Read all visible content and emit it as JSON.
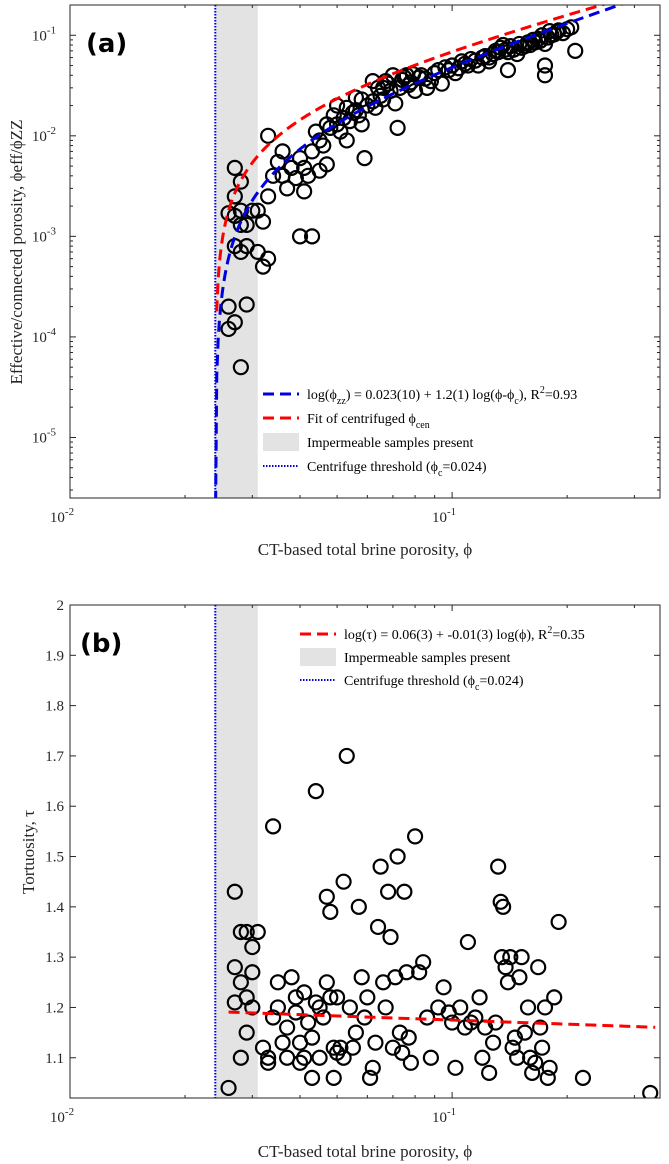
{
  "chart_data": [
    {
      "type": "scatter",
      "panel_label": "(a)",
      "xscale": "log",
      "yscale": "log",
      "xlim": [
        0.01,
        0.35
      ],
      "ylim": [
        2.5e-06,
        0.2
      ],
      "xlabel": "CT-based total brine porosity, ϕ",
      "ylabel": "Effective/connected porosity, ϕeff/ϕZZ",
      "xticks": [
        {
          "value": 0.01,
          "base": "10",
          "exp": "-2"
        },
        {
          "value": 0.1,
          "base": "10",
          "exp": "-1"
        }
      ],
      "yticks": [
        {
          "value": 1e-05,
          "base": "10",
          "exp": "-5"
        },
        {
          "value": 0.0001,
          "base": "10",
          "exp": "-4"
        },
        {
          "value": 0.001,
          "base": "10",
          "exp": "-3"
        },
        {
          "value": 0.01,
          "base": "10",
          "exp": "-2"
        },
        {
          "value": 0.1,
          "base": "10",
          "exp": "-1"
        }
      ],
      "impermeable_band": [
        0.024,
        0.031
      ],
      "threshold_x": 0.024,
      "threshold_y_bottom": 2.5e-06,
      "fit_zz": {
        "intercept": 0.023,
        "slope": 1.2,
        "phi_c": 0.024,
        "color": "#0000e0"
      },
      "fit_cen": {
        "a": 0.9,
        "b": 1.0,
        "phi_c": 0.024,
        "color": "#ff0000"
      },
      "legend": [
        {
          "kind": "blue-dash",
          "text_pre": "log(ϕ",
          "sub": "zz",
          "text_post": ") = 0.023(10) + 1.2(1) log(ϕ-ϕ",
          "sub2": "c",
          "text_post2": "), R",
          "sup": "2",
          "text_end": "=0.93"
        },
        {
          "kind": "red-dash",
          "text_pre": "Fit of centrifuged ϕ",
          "sub": "cen"
        },
        {
          "kind": "gray-box",
          "text_pre": "Impermeable samples present"
        },
        {
          "kind": "blue-dot",
          "text_pre": "Centrifuge threshold (ϕ",
          "sub": "c",
          "text_post": "=0.024)"
        }
      ],
      "points": [
        [
          0.027,
          0.0048
        ],
        [
          0.028,
          0.0035
        ],
        [
          0.027,
          0.0025
        ],
        [
          0.028,
          0.0018
        ],
        [
          0.027,
          0.0016
        ],
        [
          0.028,
          0.0013
        ],
        [
          0.027,
          0.0008
        ],
        [
          0.028,
          0.0007
        ],
        [
          0.029,
          0.0008
        ],
        [
          0.029,
          0.0013
        ],
        [
          0.03,
          0.0018
        ],
        [
          0.026,
          0.0017
        ],
        [
          0.026,
          0.00012
        ],
        [
          0.026,
          0.0002
        ],
        [
          0.027,
          0.00014
        ],
        [
          0.028,
          5e-05
        ],
        [
          0.029,
          0.00021
        ],
        [
          0.031,
          0.0007
        ],
        [
          0.032,
          0.0005
        ],
        [
          0.033,
          0.0006
        ],
        [
          0.031,
          0.0018
        ],
        [
          0.032,
          0.0014
        ],
        [
          0.033,
          0.0025
        ],
        [
          0.034,
          0.004
        ],
        [
          0.033,
          0.01
        ],
        [
          0.035,
          0.0055
        ],
        [
          0.036,
          0.004
        ],
        [
          0.036,
          0.007
        ],
        [
          0.038,
          0.0048
        ],
        [
          0.037,
          0.003
        ],
        [
          0.039,
          0.0038
        ],
        [
          0.04,
          0.006
        ],
        [
          0.041,
          0.0028
        ],
        [
          0.04,
          0.001
        ],
        [
          0.043,
          0.001
        ],
        [
          0.042,
          0.004
        ],
        [
          0.043,
          0.007
        ],
        [
          0.044,
          0.011
        ],
        [
          0.045,
          0.009
        ],
        [
          0.046,
          0.008
        ],
        [
          0.045,
          0.0045
        ],
        [
          0.047,
          0.0052
        ],
        [
          0.048,
          0.012
        ],
        [
          0.049,
          0.016
        ],
        [
          0.05,
          0.02
        ],
        [
          0.05,
          0.013
        ],
        [
          0.051,
          0.011
        ],
        [
          0.052,
          0.015
        ],
        [
          0.053,
          0.009
        ],
        [
          0.054,
          0.014
        ],
        [
          0.053,
          0.019
        ],
        [
          0.055,
          0.017
        ],
        [
          0.056,
          0.018
        ],
        [
          0.057,
          0.016
        ],
        [
          0.058,
          0.023
        ],
        [
          0.058,
          0.013
        ],
        [
          0.06,
          0.02
        ],
        [
          0.059,
          0.006
        ],
        [
          0.062,
          0.022
        ],
        [
          0.063,
          0.019
        ],
        [
          0.064,
          0.03
        ],
        [
          0.065,
          0.025
        ],
        [
          0.066,
          0.023
        ],
        [
          0.067,
          0.035
        ],
        [
          0.068,
          0.033
        ],
        [
          0.069,
          0.028
        ],
        [
          0.07,
          0.04
        ],
        [
          0.071,
          0.021
        ],
        [
          0.072,
          0.012
        ],
        [
          0.073,
          0.03
        ],
        [
          0.074,
          0.036
        ],
        [
          0.075,
          0.038
        ],
        [
          0.076,
          0.04
        ],
        [
          0.077,
          0.032
        ],
        [
          0.078,
          0.034
        ],
        [
          0.079,
          0.041
        ],
        [
          0.08,
          0.028
        ],
        [
          0.082,
          0.038
        ],
        [
          0.083,
          0.04
        ],
        [
          0.085,
          0.037
        ],
        [
          0.086,
          0.03
        ],
        [
          0.088,
          0.035
        ],
        [
          0.09,
          0.042
        ],
        [
          0.092,
          0.045
        ],
        [
          0.094,
          0.033
        ],
        [
          0.096,
          0.048
        ],
        [
          0.098,
          0.045
        ],
        [
          0.1,
          0.05
        ],
        [
          0.102,
          0.042
        ],
        [
          0.104,
          0.047
        ],
        [
          0.106,
          0.055
        ],
        [
          0.108,
          0.052
        ],
        [
          0.11,
          0.05
        ],
        [
          0.112,
          0.058
        ],
        [
          0.115,
          0.056
        ],
        [
          0.117,
          0.05
        ],
        [
          0.12,
          0.06
        ],
        [
          0.122,
          0.062
        ],
        [
          0.125,
          0.06
        ],
        [
          0.128,
          0.065
        ],
        [
          0.13,
          0.07
        ],
        [
          0.132,
          0.068
        ],
        [
          0.134,
          0.075
        ],
        [
          0.136,
          0.08
        ],
        [
          0.138,
          0.072
        ],
        [
          0.14,
          0.068
        ],
        [
          0.142,
          0.078
        ],
        [
          0.145,
          0.072
        ],
        [
          0.148,
          0.065
        ],
        [
          0.15,
          0.082
        ],
        [
          0.152,
          0.075
        ],
        [
          0.155,
          0.078
        ],
        [
          0.158,
          0.085
        ],
        [
          0.16,
          0.08
        ],
        [
          0.163,
          0.09
        ],
        [
          0.165,
          0.085
        ],
        [
          0.168,
          0.092
        ],
        [
          0.17,
          0.088
        ],
        [
          0.172,
          0.1
        ],
        [
          0.175,
          0.082
        ],
        [
          0.178,
          0.095
        ],
        [
          0.18,
          0.11
        ],
        [
          0.182,
          0.1
        ],
        [
          0.185,
          0.102
        ],
        [
          0.188,
          0.108
        ],
        [
          0.19,
          0.112
        ],
        [
          0.195,
          0.105
        ],
        [
          0.2,
          0.115
        ],
        [
          0.205,
          0.12
        ],
        [
          0.21,
          0.07
        ],
        [
          0.175,
          0.05
        ],
        [
          0.175,
          0.04
        ],
        [
          0.125,
          0.055
        ],
        [
          0.14,
          0.045
        ],
        [
          0.062,
          0.035
        ],
        [
          0.066,
          0.03
        ],
        [
          0.056,
          0.024
        ],
        [
          0.047,
          0.013
        ],
        [
          0.041,
          0.0048
        ]
      ]
    },
    {
      "type": "scatter",
      "panel_label": "(b)",
      "xscale": "log",
      "yscale": "linear",
      "xlim": [
        0.01,
        0.35
      ],
      "ylim": [
        1.02,
        2.0
      ],
      "xlabel": "CT-based total brine porosity, ϕ",
      "ylabel": "Tortuosity, τ",
      "xticks": [
        {
          "value": 0.01,
          "base": "10",
          "exp": "-2"
        },
        {
          "value": 0.1,
          "base": "10",
          "exp": "-1"
        }
      ],
      "yticks": [
        {
          "value": 1.1,
          "label": "1.1"
        },
        {
          "value": 1.2,
          "label": "1.2"
        },
        {
          "value": 1.3,
          "label": "1.3"
        },
        {
          "value": 1.4,
          "label": "1.4"
        },
        {
          "value": 1.5,
          "label": "1.5"
        },
        {
          "value": 1.6,
          "label": "1.6"
        },
        {
          "value": 1.7,
          "label": "1.7"
        },
        {
          "value": 1.8,
          "label": "1.8"
        },
        {
          "value": 1.9,
          "label": "1.9"
        },
        {
          "value": 2.0,
          "label": "2"
        }
      ],
      "impermeable_band": [
        0.024,
        0.031
      ],
      "threshold_x": 0.024,
      "fit": {
        "a": 0.06,
        "b": -0.01,
        "x_start": 0.026,
        "x_end": 0.34,
        "color": "#ff0000"
      },
      "legend": [
        {
          "kind": "red-dash",
          "text_pre": "log(τ) = 0.06(3) + -0.01(3) log(ϕ), R",
          "sup": "2",
          "text_end": "=0.35"
        },
        {
          "kind": "gray-box",
          "text_pre": "Impermeable samples present"
        },
        {
          "kind": "blue-dot",
          "text_pre": "Centrifuge threshold (ϕ",
          "sub": "c",
          "text_post": "=0.024)"
        }
      ],
      "points": [
        [
          0.026,
          1.04
        ],
        [
          0.027,
          1.21
        ],
        [
          0.027,
          1.28
        ],
        [
          0.028,
          1.35
        ],
        [
          0.027,
          1.43
        ],
        [
          0.028,
          1.25
        ],
        [
          0.028,
          1.1
        ],
        [
          0.029,
          1.22
        ],
        [
          0.029,
          1.15
        ],
        [
          0.029,
          1.35
        ],
        [
          0.03,
          1.32
        ],
        [
          0.03,
          1.27
        ],
        [
          0.03,
          1.2
        ],
        [
          0.031,
          1.35
        ],
        [
          0.032,
          1.12
        ],
        [
          0.033,
          1.1
        ],
        [
          0.033,
          1.09
        ],
        [
          0.034,
          1.18
        ],
        [
          0.034,
          1.56
        ],
        [
          0.035,
          1.25
        ],
        [
          0.035,
          1.2
        ],
        [
          0.036,
          1.13
        ],
        [
          0.037,
          1.16
        ],
        [
          0.037,
          1.1
        ],
        [
          0.038,
          1.26
        ],
        [
          0.039,
          1.22
        ],
        [
          0.039,
          1.19
        ],
        [
          0.04,
          1.09
        ],
        [
          0.04,
          1.13
        ],
        [
          0.041,
          1.23
        ],
        [
          0.041,
          1.1
        ],
        [
          0.042,
          1.17
        ],
        [
          0.043,
          1.14
        ],
        [
          0.043,
          1.06
        ],
        [
          0.044,
          1.63
        ],
        [
          0.044,
          1.21
        ],
        [
          0.045,
          1.1
        ],
        [
          0.045,
          1.2
        ],
        [
          0.046,
          1.18
        ],
        [
          0.047,
          1.25
        ],
        [
          0.047,
          1.42
        ],
        [
          0.048,
          1.22
        ],
        [
          0.048,
          1.39
        ],
        [
          0.049,
          1.12
        ],
        [
          0.049,
          1.06
        ],
        [
          0.05,
          1.22
        ],
        [
          0.05,
          1.11
        ],
        [
          0.051,
          1.12
        ],
        [
          0.052,
          1.1
        ],
        [
          0.052,
          1.45
        ],
        [
          0.053,
          1.7
        ],
        [
          0.054,
          1.2
        ],
        [
          0.055,
          1.12
        ],
        [
          0.056,
          1.15
        ],
        [
          0.057,
          1.4
        ],
        [
          0.058,
          1.26
        ],
        [
          0.059,
          1.18
        ],
        [
          0.06,
          1.22
        ],
        [
          0.061,
          1.06
        ],
        [
          0.062,
          1.08
        ],
        [
          0.063,
          1.13
        ],
        [
          0.064,
          1.36
        ],
        [
          0.065,
          1.48
        ],
        [
          0.066,
          1.25
        ],
        [
          0.067,
          1.2
        ],
        [
          0.068,
          1.43
        ],
        [
          0.069,
          1.34
        ],
        [
          0.07,
          1.12
        ],
        [
          0.071,
          1.26
        ],
        [
          0.072,
          1.5
        ],
        [
          0.073,
          1.15
        ],
        [
          0.074,
          1.11
        ],
        [
          0.075,
          1.43
        ],
        [
          0.076,
          1.27
        ],
        [
          0.077,
          1.14
        ],
        [
          0.078,
          1.09
        ],
        [
          0.08,
          1.54
        ],
        [
          0.082,
          1.27
        ],
        [
          0.084,
          1.29
        ],
        [
          0.086,
          1.18
        ],
        [
          0.088,
          1.1
        ],
        [
          0.092,
          1.2
        ],
        [
          0.095,
          1.24
        ],
        [
          0.098,
          1.19
        ],
        [
          0.1,
          1.17
        ],
        [
          0.102,
          1.08
        ],
        [
          0.105,
          1.2
        ],
        [
          0.108,
          1.16
        ],
        [
          0.11,
          1.33
        ],
        [
          0.112,
          1.17
        ],
        [
          0.115,
          1.18
        ],
        [
          0.118,
          1.22
        ],
        [
          0.12,
          1.1
        ],
        [
          0.122,
          1.16
        ],
        [
          0.125,
          1.07
        ],
        [
          0.128,
          1.13
        ],
        [
          0.13,
          1.17
        ],
        [
          0.132,
          1.48
        ],
        [
          0.134,
          1.41
        ],
        [
          0.135,
          1.3
        ],
        [
          0.136,
          1.4
        ],
        [
          0.138,
          1.28
        ],
        [
          0.14,
          1.25
        ],
        [
          0.142,
          1.3
        ],
        [
          0.144,
          1.12
        ],
        [
          0.146,
          1.14
        ],
        [
          0.148,
          1.1
        ],
        [
          0.15,
          1.26
        ],
        [
          0.152,
          1.3
        ],
        [
          0.155,
          1.15
        ],
        [
          0.158,
          1.2
        ],
        [
          0.16,
          1.1
        ],
        [
          0.162,
          1.07
        ],
        [
          0.165,
          1.09
        ],
        [
          0.168,
          1.28
        ],
        [
          0.17,
          1.16
        ],
        [
          0.172,
          1.12
        ],
        [
          0.175,
          1.2
        ],
        [
          0.178,
          1.06
        ],
        [
          0.18,
          1.08
        ],
        [
          0.185,
          1.22
        ],
        [
          0.19,
          1.37
        ],
        [
          0.22,
          1.06
        ],
        [
          0.33,
          1.03
        ]
      ]
    }
  ]
}
